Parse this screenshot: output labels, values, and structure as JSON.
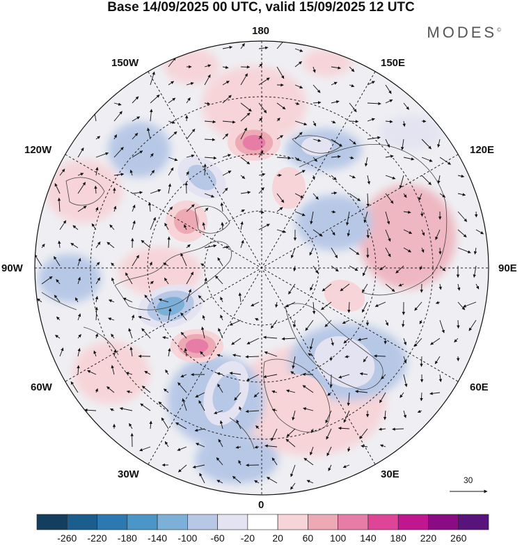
{
  "title": "Base 14/09/2025 00 UTC, valid 15/09/2025 12 UTC",
  "brand": "MODES",
  "brand_mark": "©",
  "longitude_labels": {
    "n": "180",
    "s": "0",
    "w": "90W",
    "e": "90E",
    "nw1": "150W",
    "nw2": "120W",
    "ne1": "150E",
    "ne2": "120E",
    "sw1": "60W",
    "sw2": "30W",
    "se1": "60E",
    "se2": "30E"
  },
  "vector_reference": "30",
  "colorbar": {
    "ticks": [
      "-260",
      "-220",
      "-180",
      "-140",
      "-100",
      "-60",
      "-20",
      "20",
      "60",
      "100",
      "140",
      "180",
      "220",
      "260"
    ],
    "colors": [
      "#143e5e",
      "#1b5d8d",
      "#2c78b0",
      "#4b96c6",
      "#7db0d8",
      "#b7c8e6",
      "#e3e3f1",
      "#ffffff",
      "#f6d4d8",
      "#eda9b4",
      "#e77da6",
      "#df4596",
      "#c0168f",
      "#8b0b85",
      "#59137c"
    ]
  },
  "anomaly_cells": [
    {
      "type": "pos",
      "level": 10
    },
    {
      "type": "neg",
      "level": 9
    },
    {
      "type": "pos",
      "level": 9
    },
    {
      "type": "neg",
      "level": 10
    },
    {
      "type": "pos",
      "level": 10
    },
    {
      "type": "neg",
      "level": 9
    },
    {
      "type": "pos",
      "level": 8
    },
    {
      "type": "pos",
      "level": 8
    },
    {
      "type": "neg",
      "level": 8
    },
    {
      "type": "pos",
      "level": 7
    },
    {
      "type": "neg",
      "level": 7
    },
    {
      "type": "pos",
      "level": 7
    }
  ]
}
